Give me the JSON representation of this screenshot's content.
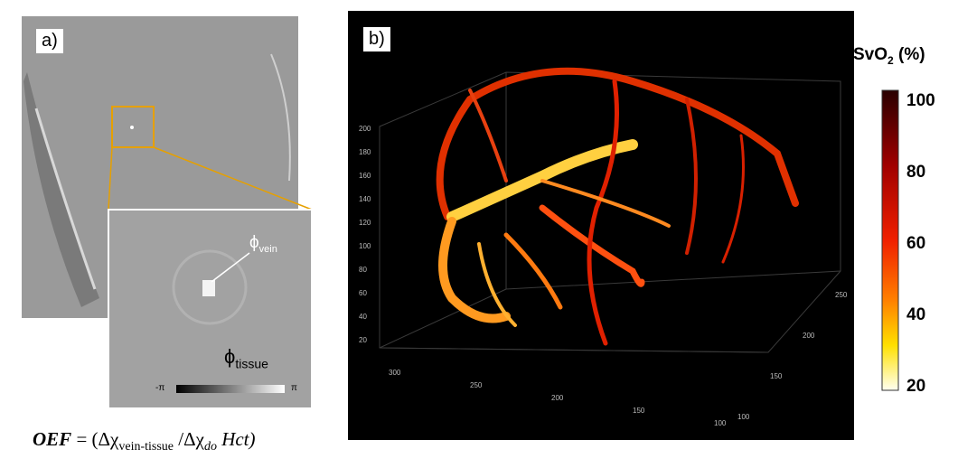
{
  "panel_a": {
    "label": "a)",
    "phi_vein": {
      "symbol": "ϕ",
      "subscript": "vein"
    },
    "phi_tissue": {
      "symbol": "ϕ",
      "subscript": "tissue"
    },
    "scale_min": "-π",
    "scale_max": "π"
  },
  "formula": {
    "lhs": "OEF",
    "open": " = (Δχ",
    "sub1": "vein-tissue",
    "mid": " /Δχ",
    "sub2": "do",
    "end": " Hct)"
  },
  "panel_b": {
    "label": "b)",
    "z_ticks": [
      "20",
      "40",
      "60",
      "80",
      "100",
      "120",
      "140",
      "160",
      "180",
      "200"
    ],
    "x_ticks": [
      "300",
      "250",
      "200",
      "150",
      "100"
    ],
    "y_ticks": [
      "250",
      "200",
      "150",
      "100"
    ]
  },
  "colorbar": {
    "title": "SvO",
    "title_sub": "2",
    "title_end": " (%)",
    "ticks": [
      "100",
      "80",
      "60",
      "40",
      "20"
    ]
  }
}
